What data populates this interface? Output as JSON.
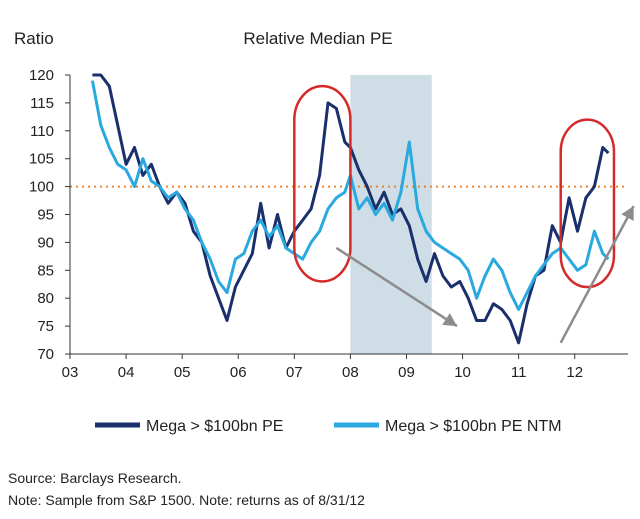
{
  "chart_data": {
    "type": "line",
    "title": "Relative Median PE",
    "ylabel": "Ratio",
    "xlabel": "",
    "ylim": [
      70,
      120
    ],
    "xlim": [
      2003,
      2012.95
    ],
    "x_ticks": [
      "03",
      "04",
      "05",
      "06",
      "07",
      "08",
      "09",
      "10",
      "11",
      "12"
    ],
    "y_ticks": [
      "70",
      "75",
      "80",
      "85",
      "90",
      "95",
      "100",
      "105",
      "110",
      "115",
      "120"
    ],
    "reference_line": {
      "y": 100,
      "style": "dotted",
      "color": "#e8862b"
    },
    "shaded_region": {
      "x": [
        2008.0,
        2009.45
      ],
      "color": "#cfdde6"
    },
    "highlights": [
      {
        "x": [
          2007.0,
          2008.0
        ],
        "y": [
          83,
          118
        ],
        "color": "#d42a2a"
      },
      {
        "x": [
          2011.75,
          2012.7
        ],
        "y": [
          82,
          112
        ],
        "color": "#d42a2a"
      }
    ],
    "arrows": [
      {
        "from": [
          2007.75,
          89
        ],
        "to": [
          2009.9,
          75
        ],
        "color": "#8c8c8c"
      },
      {
        "from": [
          2011.75,
          72
        ],
        "to": [
          2013.05,
          96.5
        ],
        "color": "#8c8c8c"
      }
    ],
    "series": [
      {
        "name": "Mega > $100bn PE",
        "color": "#1a2f6b",
        "x": [
          2003.4,
          2003.55,
          2003.7,
          2003.85,
          2004.0,
          2004.15,
          2004.3,
          2004.45,
          2004.6,
          2004.75,
          2004.9,
          2005.05,
          2005.2,
          2005.35,
          2005.5,
          2005.65,
          2005.8,
          2005.95,
          2006.1,
          2006.25,
          2006.4,
          2006.55,
          2006.7,
          2006.85,
          2007.0,
          2007.15,
          2007.3,
          2007.45,
          2007.6,
          2007.75,
          2007.9,
          2008.0,
          2008.15,
          2008.3,
          2008.45,
          2008.6,
          2008.75,
          2008.9,
          2009.05,
          2009.2,
          2009.35,
          2009.5,
          2009.65,
          2009.8,
          2009.95,
          2010.1,
          2010.25,
          2010.4,
          2010.55,
          2010.7,
          2010.85,
          2011.0,
          2011.15,
          2011.3,
          2011.45,
          2011.6,
          2011.75,
          2011.9,
          2012.05,
          2012.2,
          2012.35,
          2012.5,
          2012.6
        ],
        "values": [
          120,
          120,
          118,
          111,
          104,
          107,
          102,
          104,
          100,
          97,
          99,
          97,
          92,
          90,
          84,
          80,
          76,
          82,
          85,
          88,
          97,
          89,
          95,
          89,
          92,
          94,
          96,
          102,
          115,
          114,
          108,
          107,
          103,
          100,
          96,
          99,
          95,
          96,
          93,
          87,
          83,
          88,
          84,
          82,
          83,
          80,
          76,
          76,
          79,
          78,
          76,
          72,
          79,
          84,
          85,
          93,
          90,
          98,
          92,
          98,
          100,
          107,
          106
        ]
      },
      {
        "name": "Mega > $100bn PE NTM",
        "color": "#2aa9e0",
        "x": [
          2003.4,
          2003.55,
          2003.7,
          2003.85,
          2004.0,
          2004.15,
          2004.3,
          2004.45,
          2004.6,
          2004.75,
          2004.9,
          2005.05,
          2005.2,
          2005.35,
          2005.5,
          2005.65,
          2005.8,
          2005.95,
          2006.1,
          2006.25,
          2006.4,
          2006.55,
          2006.7,
          2006.85,
          2007.0,
          2007.15,
          2007.3,
          2007.45,
          2007.6,
          2007.75,
          2007.9,
          2008.0,
          2008.15,
          2008.3,
          2008.45,
          2008.6,
          2008.75,
          2008.9,
          2009.05,
          2009.2,
          2009.35,
          2009.5,
          2009.65,
          2009.8,
          2009.95,
          2010.1,
          2010.25,
          2010.4,
          2010.55,
          2010.7,
          2010.85,
          2011.0,
          2011.15,
          2011.3,
          2011.45,
          2011.6,
          2011.75,
          2011.9,
          2012.05,
          2012.2,
          2012.35,
          2012.5,
          2012.6
        ],
        "values": [
          119,
          111,
          107,
          104,
          103,
          100,
          105,
          101,
          100,
          98,
          99,
          96,
          94,
          90,
          87,
          83,
          81,
          87,
          88,
          92,
          94,
          91,
          93,
          89,
          88,
          87,
          90,
          92,
          96,
          98,
          99,
          102,
          96,
          98,
          95,
          97,
          94,
          99,
          108,
          96,
          92,
          90,
          89,
          88,
          87,
          85,
          80,
          84,
          87,
          85,
          81,
          78,
          81,
          84,
          86,
          88,
          89,
          87,
          85,
          86,
          92,
          88,
          87
        ]
      }
    ],
    "legend_position": "bottom"
  },
  "footer": {
    "source": "Source: Barclays Research.",
    "note": "Note: Sample from S&P 1500. Note: returns as of 8/31/12"
  }
}
